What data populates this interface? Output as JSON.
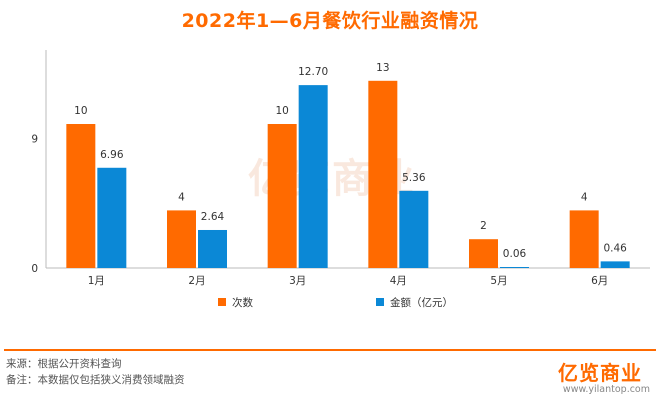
{
  "title": "2022年1—6月餐饮行业融资情况",
  "colors": {
    "accent": "#ff6a00",
    "count": "#ff6a00",
    "amount": "#0b88d6"
  },
  "chart_data": {
    "type": "bar",
    "categories": [
      "1月",
      "2月",
      "3月",
      "4月",
      "5月",
      "6月"
    ],
    "series": [
      {
        "name": "次数",
        "values": [
          10,
          4,
          10,
          13,
          2,
          4
        ],
        "labels": [
          "10",
          "4",
          "10",
          "13",
          "2",
          "4"
        ]
      },
      {
        "name": "金额（亿元）",
        "values": [
          6.96,
          2.64,
          12.7,
          5.36,
          0.06,
          0.46
        ],
        "labels": [
          "6.96",
          "2.64",
          "12.70",
          "5.36",
          "0.06",
          "0.46"
        ]
      }
    ],
    "yticks": [
      "0",
      "9"
    ],
    "ylim": [
      0,
      15
    ],
    "legend_position": "bottom"
  },
  "watermark": "亿览商业",
  "footer": {
    "source": "来源：根据公开资料查询",
    "note": "备注：本数据仅包括狭义消费领域融资",
    "brand": "亿览商业",
    "url": "www.yilantop.com"
  }
}
